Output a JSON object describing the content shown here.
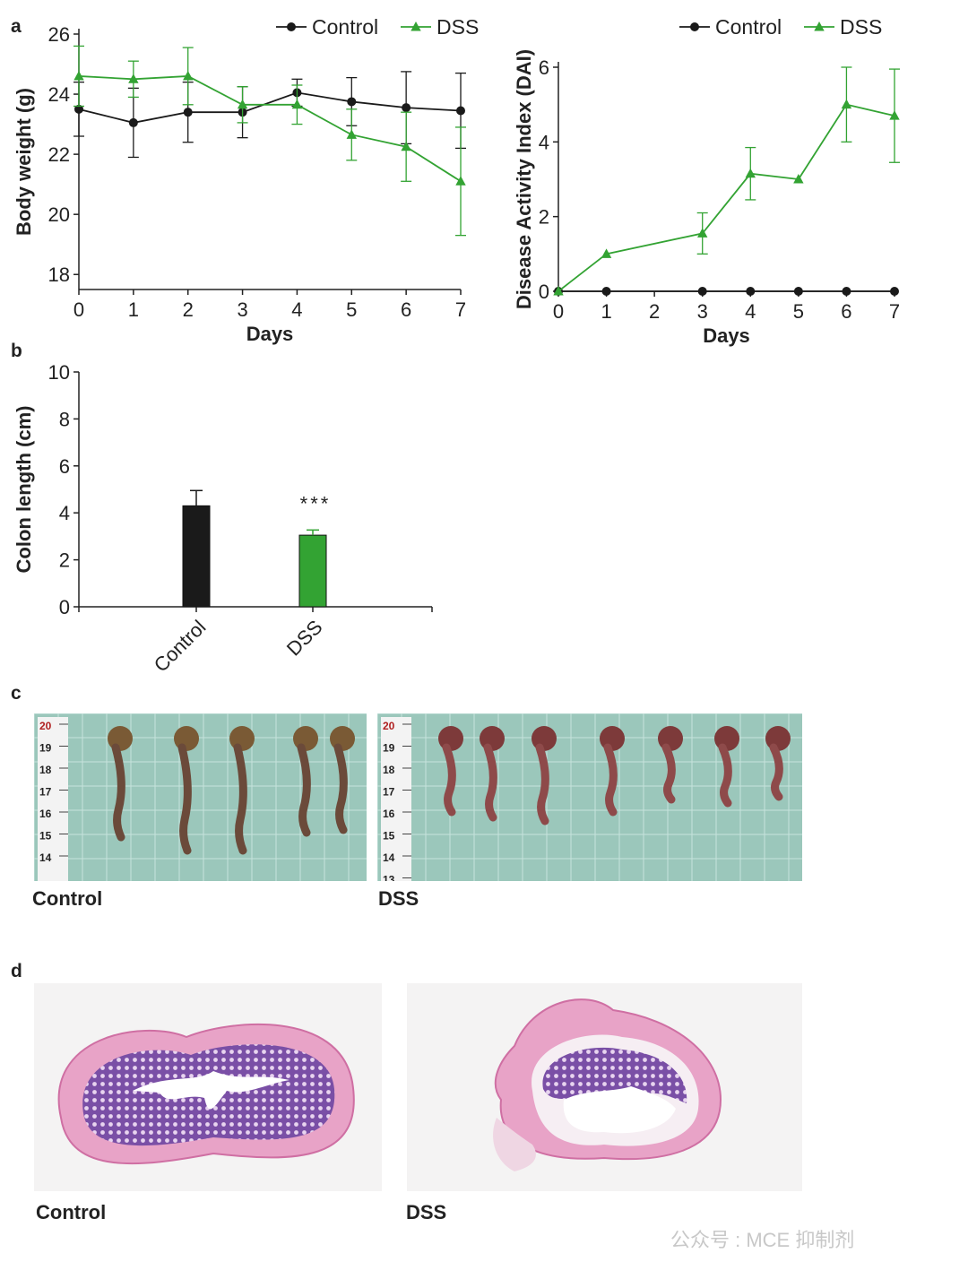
{
  "panels": {
    "a": "a",
    "b": "b",
    "c": "c",
    "d": "d"
  },
  "captions": {
    "c_control": "Control",
    "c_dss": "DSS",
    "d_control": "Control",
    "d_dss": "DSS"
  },
  "watermark": "公众号 : MCE 抑制剂",
  "colors": {
    "control": "#1a1a1a",
    "dss": "#33a333",
    "axis": "#222222"
  },
  "chart_data": [
    {
      "id": "body-weight",
      "type": "line",
      "xlabel": "Days",
      "ylabel": "Body weight (g)",
      "xlim": [
        0,
        7
      ],
      "ylim": [
        17.5,
        26
      ],
      "xticks": [
        0,
        1,
        2,
        3,
        4,
        5,
        6,
        7
      ],
      "yticks": [
        18,
        20,
        22,
        24,
        26
      ],
      "legend_position": "top-right",
      "series": [
        {
          "name": "Control",
          "marker": "circle",
          "x": [
            0,
            1,
            2,
            3,
            4,
            5,
            6,
            7
          ],
          "values": [
            23.5,
            23.05,
            23.4,
            23.4,
            24.05,
            23.75,
            23.55,
            23.45
          ],
          "errors": [
            0.9,
            1.15,
            1.0,
            0.85,
            0.45,
            0.8,
            1.2,
            1.25
          ]
        },
        {
          "name": "DSS",
          "marker": "triangle",
          "x": [
            0,
            1,
            2,
            3,
            4,
            5,
            6,
            7
          ],
          "values": [
            24.6,
            24.5,
            24.6,
            23.65,
            23.65,
            22.65,
            22.25,
            21.1
          ],
          "errors": [
            1.0,
            0.6,
            0.95,
            0.6,
            0.65,
            0.85,
            1.15,
            1.8
          ]
        }
      ]
    },
    {
      "id": "dai",
      "type": "line",
      "xlabel": "Days",
      "ylabel": "Disease Activity Index (DAI)",
      "xlim": [
        0,
        7
      ],
      "ylim": [
        0,
        6
      ],
      "xticks": [
        0,
        1,
        2,
        3,
        4,
        5,
        6,
        7
      ],
      "yticks": [
        0,
        2,
        4,
        6
      ],
      "legend_position": "top-right",
      "series": [
        {
          "name": "Control",
          "marker": "circle",
          "x": [
            0,
            1,
            3,
            4,
            5,
            6,
            7
          ],
          "values": [
            0,
            0,
            0,
            0,
            0,
            0,
            0
          ],
          "errors": [
            0,
            0,
            0,
            0,
            0,
            0,
            0
          ]
        },
        {
          "name": "DSS",
          "marker": "triangle",
          "x": [
            0,
            1,
            3,
            4,
            5,
            6,
            7
          ],
          "values": [
            0,
            1.0,
            1.55,
            3.15,
            3.0,
            5.0,
            4.7
          ],
          "errors": [
            0,
            0,
            0.55,
            0.7,
            0,
            1.0,
            1.25
          ]
        }
      ]
    },
    {
      "id": "colon-length",
      "type": "bar",
      "ylabel": "Colon length  (cm)",
      "ylim": [
        0,
        10
      ],
      "yticks": [
        0,
        2,
        4,
        6,
        8,
        10
      ],
      "categories": [
        "Control",
        "DSS"
      ],
      "values": [
        4.3,
        3.05
      ],
      "errors": [
        0.65,
        0.22
      ],
      "colors": [
        "#1a1a1a",
        "#33a333"
      ],
      "annotations": [
        {
          "category": "DSS",
          "text": "***"
        }
      ]
    }
  ]
}
